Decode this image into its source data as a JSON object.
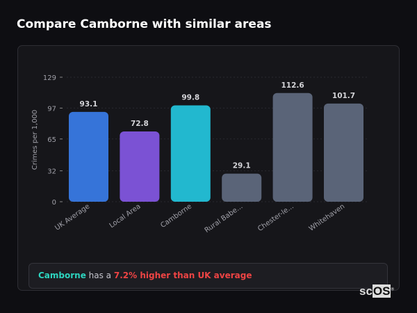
{
  "title": "Compare Camborne with similar areas",
  "chart_data": {
    "type": "bar",
    "ylabel": "Crimes per 1,000",
    "xlabel": "",
    "ylim": [
      0,
      129
    ],
    "yticks": [
      0,
      32,
      65,
      97,
      129
    ],
    "grid": true,
    "categories": [
      "UK Average",
      "Local Area",
      "Camborne",
      "Rural Babe...",
      "Chester-le...",
      "Whitehaven"
    ],
    "values": [
      93.1,
      72.8,
      99.8,
      29.1,
      112.6,
      101.7
    ],
    "value_labels": [
      "93.1",
      "72.8",
      "99.8",
      "29.1",
      "112.6",
      "101.7"
    ],
    "colors": [
      "#3674d9",
      "#7b52d4",
      "#22b8cf",
      "#5a6478",
      "#5a6478",
      "#5a6478"
    ]
  },
  "summary": {
    "area": "Camborne",
    "middle": " has a ",
    "comparison": "7.2% higher than UK average"
  },
  "logo": {
    "text_a": "sc",
    "text_b": "OS",
    "mark": "®"
  }
}
